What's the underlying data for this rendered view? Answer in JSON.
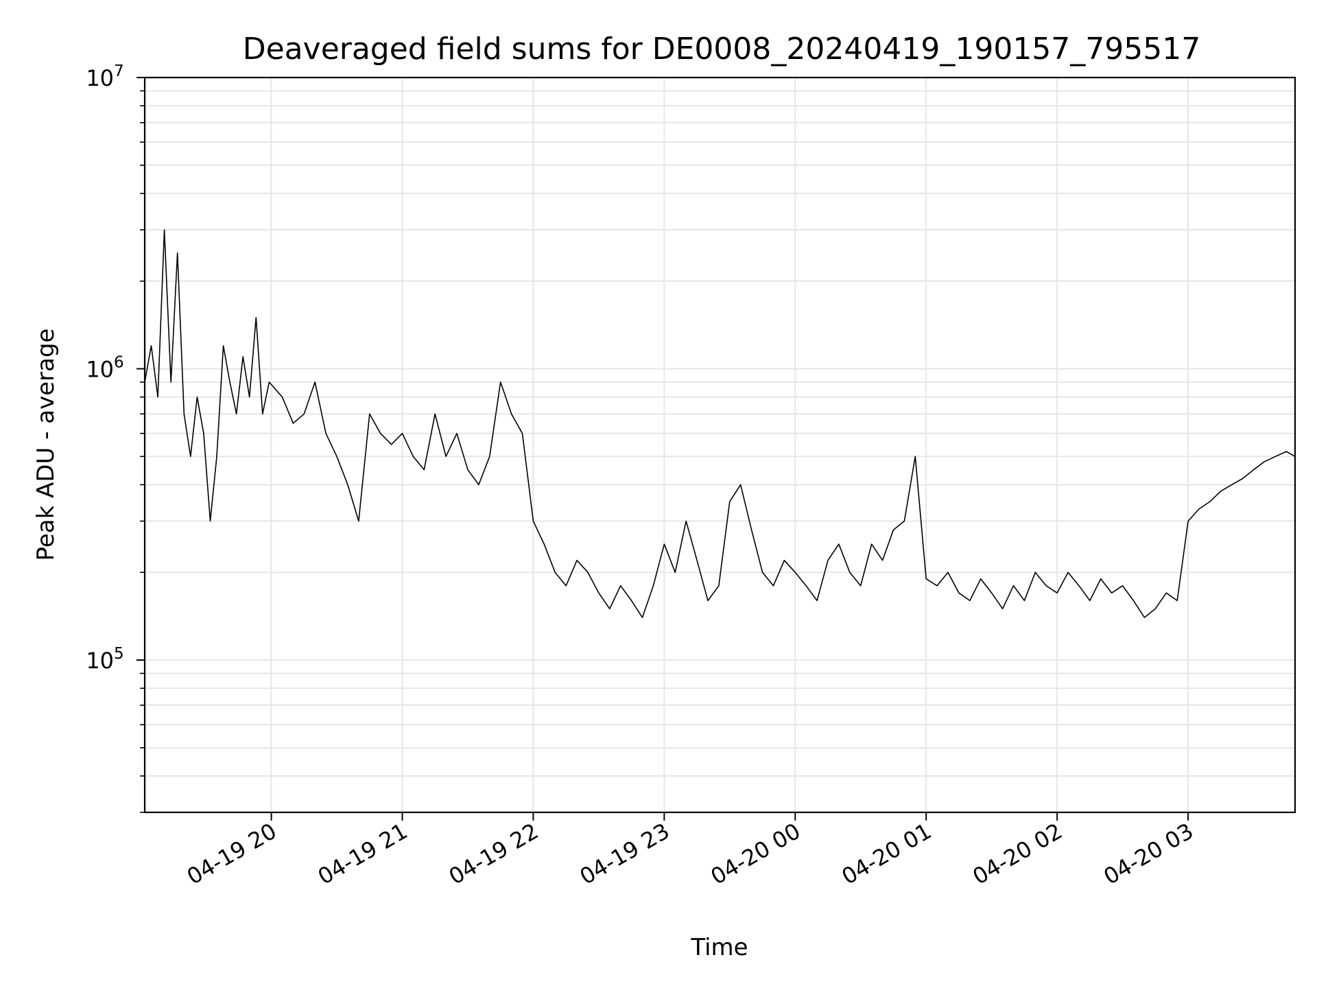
{
  "chart_data": {
    "type": "line",
    "title": "Deaveraged field sums for DE0008_20240419_190157_795517",
    "xlabel": "Time",
    "ylabel": "Peak ADU - average",
    "yscale": "log",
    "ylim": [
      30000,
      10000000
    ],
    "xlim": [
      "2024-04-19 19:02",
      "2024-04-20 03:49"
    ],
    "grid": true,
    "line_color": "#000000",
    "grid_color": "#e6e6e6",
    "x_ticks": [
      {
        "value": "2024-04-19 20:00",
        "label": "04-19 20"
      },
      {
        "value": "2024-04-19 21:00",
        "label": "04-19 21"
      },
      {
        "value": "2024-04-19 22:00",
        "label": "04-19 22"
      },
      {
        "value": "2024-04-19 23:00",
        "label": "04-19 23"
      },
      {
        "value": "2024-04-20 00:00",
        "label": "04-20 00"
      },
      {
        "value": "2024-04-20 01:00",
        "label": "04-20 01"
      },
      {
        "value": "2024-04-20 02:00",
        "label": "04-20 02"
      },
      {
        "value": "2024-04-20 03:00",
        "label": "04-20 03"
      }
    ],
    "y_ticks": [
      {
        "value": 100000,
        "base": "10",
        "exp": "5"
      },
      {
        "value": 1000000,
        "base": "10",
        "exp": "6"
      },
      {
        "value": 10000000,
        "base": "10",
        "exp": "7"
      }
    ],
    "series": [
      {
        "x": [
          "2024-04-19 19:02",
          "2024-04-19 19:05",
          "2024-04-19 19:08",
          "2024-04-19 19:11",
          "2024-04-19 19:14",
          "2024-04-19 19:17",
          "2024-04-19 19:20",
          "2024-04-19 19:23",
          "2024-04-19 19:26",
          "2024-04-19 19:29",
          "2024-04-19 19:32",
          "2024-04-19 19:35",
          "2024-04-19 19:38",
          "2024-04-19 19:41",
          "2024-04-19 19:44",
          "2024-04-19 19:47",
          "2024-04-19 19:50",
          "2024-04-19 19:53",
          "2024-04-19 19:56",
          "2024-04-19 19:59",
          "2024-04-19 20:05",
          "2024-04-19 20:10",
          "2024-04-19 20:15",
          "2024-04-19 20:20",
          "2024-04-19 20:25",
          "2024-04-19 20:30",
          "2024-04-19 20:35",
          "2024-04-19 20:40",
          "2024-04-19 20:45",
          "2024-04-19 20:50",
          "2024-04-19 20:55",
          "2024-04-19 21:00",
          "2024-04-19 21:05",
          "2024-04-19 21:10",
          "2024-04-19 21:15",
          "2024-04-19 21:20",
          "2024-04-19 21:25",
          "2024-04-19 21:30",
          "2024-04-19 21:35",
          "2024-04-19 21:40",
          "2024-04-19 21:45",
          "2024-04-19 21:50",
          "2024-04-19 21:55",
          "2024-04-19 22:00",
          "2024-04-19 22:05",
          "2024-04-19 22:10",
          "2024-04-19 22:15",
          "2024-04-19 22:20",
          "2024-04-19 22:25",
          "2024-04-19 22:30",
          "2024-04-19 22:35",
          "2024-04-19 22:40",
          "2024-04-19 22:45",
          "2024-04-19 22:50",
          "2024-04-19 22:55",
          "2024-04-19 23:00",
          "2024-04-19 23:05",
          "2024-04-19 23:10",
          "2024-04-19 23:15",
          "2024-04-19 23:20",
          "2024-04-19 23:25",
          "2024-04-19 23:30",
          "2024-04-19 23:35",
          "2024-04-19 23:40",
          "2024-04-19 23:45",
          "2024-04-19 23:50",
          "2024-04-19 23:55",
          "2024-04-20 00:00",
          "2024-04-20 00:05",
          "2024-04-20 00:10",
          "2024-04-20 00:15",
          "2024-04-20 00:20",
          "2024-04-20 00:25",
          "2024-04-20 00:30",
          "2024-04-20 00:35",
          "2024-04-20 00:40",
          "2024-04-20 00:45",
          "2024-04-20 00:50",
          "2024-04-20 00:55",
          "2024-04-20 01:00",
          "2024-04-20 01:05",
          "2024-04-20 01:10",
          "2024-04-20 01:15",
          "2024-04-20 01:20",
          "2024-04-20 01:25",
          "2024-04-20 01:30",
          "2024-04-20 01:35",
          "2024-04-20 01:40",
          "2024-04-20 01:45",
          "2024-04-20 01:50",
          "2024-04-20 01:55",
          "2024-04-20 02:00",
          "2024-04-20 02:05",
          "2024-04-20 02:10",
          "2024-04-20 02:15",
          "2024-04-20 02:20",
          "2024-04-20 02:25",
          "2024-04-20 02:30",
          "2024-04-20 02:35",
          "2024-04-20 02:40",
          "2024-04-20 02:45",
          "2024-04-20 02:50",
          "2024-04-20 02:55",
          "2024-04-20 03:00",
          "2024-04-20 03:05",
          "2024-04-20 03:10",
          "2024-04-20 03:15",
          "2024-04-20 03:20",
          "2024-04-20 03:25",
          "2024-04-20 03:30",
          "2024-04-20 03:35",
          "2024-04-20 03:40",
          "2024-04-20 03:45",
          "2024-04-20 03:49"
        ],
        "y": [
          900000,
          1200000,
          800000,
          3000000,
          900000,
          2500000,
          700000,
          500000,
          800000,
          600000,
          300000,
          500000,
          1200000,
          900000,
          700000,
          1100000,
          800000,
          1500000,
          700000,
          900000,
          800000,
          650000,
          700000,
          900000,
          600000,
          500000,
          400000,
          300000,
          700000,
          600000,
          550000,
          600000,
          500000,
          450000,
          700000,
          500000,
          600000,
          450000,
          400000,
          500000,
          900000,
          700000,
          600000,
          300000,
          250000,
          200000,
          180000,
          220000,
          200000,
          170000,
          150000,
          180000,
          160000,
          140000,
          180000,
          250000,
          200000,
          300000,
          220000,
          160000,
          180000,
          350000,
          400000,
          280000,
          200000,
          180000,
          220000,
          200000,
          180000,
          160000,
          220000,
          250000,
          200000,
          180000,
          250000,
          220000,
          280000,
          300000,
          500000,
          190000,
          180000,
          200000,
          170000,
          160000,
          190000,
          170000,
          150000,
          180000,
          160000,
          200000,
          180000,
          170000,
          200000,
          180000,
          160000,
          190000,
          170000,
          180000,
          160000,
          140000,
          150000,
          170000,
          160000,
          300000,
          330000,
          350000,
          380000,
          400000,
          420000,
          450000,
          480000,
          500000,
          520000,
          500000
        ]
      }
    ]
  }
}
